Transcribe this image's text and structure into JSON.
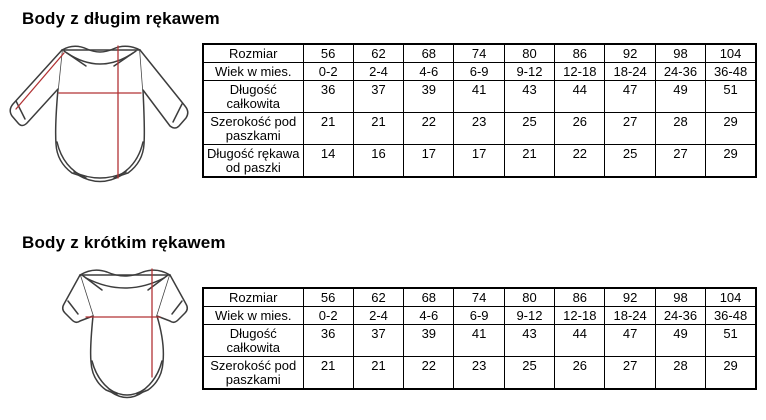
{
  "colors": {
    "background": "#ffffff",
    "text": "#000000",
    "table_border": "#000000",
    "outline": "#3d3d3d",
    "measure": "#b23335"
  },
  "sections": [
    {
      "title": "Body z długim rękawem",
      "diagram": "long-sleeve-bodysuit",
      "table": {
        "rows": [
          {
            "label": "Rozmiar",
            "values": [
              "56",
              "62",
              "68",
              "74",
              "80",
              "86",
              "92",
              "98",
              "104"
            ]
          },
          {
            "label": "Wiek w mies.",
            "values": [
              "0-2",
              "2-4",
              "4-6",
              "6-9",
              "9-12",
              "12-18",
              "18-24",
              "24-36",
              "36-48"
            ]
          },
          {
            "label": "Długość całkowita",
            "values": [
              "36",
              "37",
              "39",
              "41",
              "43",
              "44",
              "47",
              "49",
              "51"
            ]
          },
          {
            "label": "Szerokość pod paszkami",
            "values": [
              "21",
              "21",
              "22",
              "23",
              "25",
              "26",
              "27",
              "28",
              "29"
            ]
          },
          {
            "label": "Długość rękawa od paszki",
            "values": [
              "14",
              "16",
              "17",
              "17",
              "21",
              "22",
              "25",
              "27",
              "29"
            ]
          }
        ]
      }
    },
    {
      "title": "Body z krótkim rękawem",
      "diagram": "short-sleeve-bodysuit",
      "table": {
        "rows": [
          {
            "label": "Rozmiar",
            "values": [
              "56",
              "62",
              "68",
              "74",
              "80",
              "86",
              "92",
              "98",
              "104"
            ]
          },
          {
            "label": "Wiek w mies.",
            "values": [
              "0-2",
              "2-4",
              "4-6",
              "6-9",
              "9-12",
              "12-18",
              "18-24",
              "24-36",
              "36-48"
            ]
          },
          {
            "label": "Długość całkowita",
            "values": [
              "36",
              "37",
              "39",
              "41",
              "43",
              "44",
              "47",
              "49",
              "51"
            ]
          },
          {
            "label": "Szerokość pod paszkami",
            "values": [
              "21",
              "21",
              "22",
              "23",
              "25",
              "26",
              "27",
              "28",
              "29"
            ]
          }
        ]
      }
    }
  ]
}
